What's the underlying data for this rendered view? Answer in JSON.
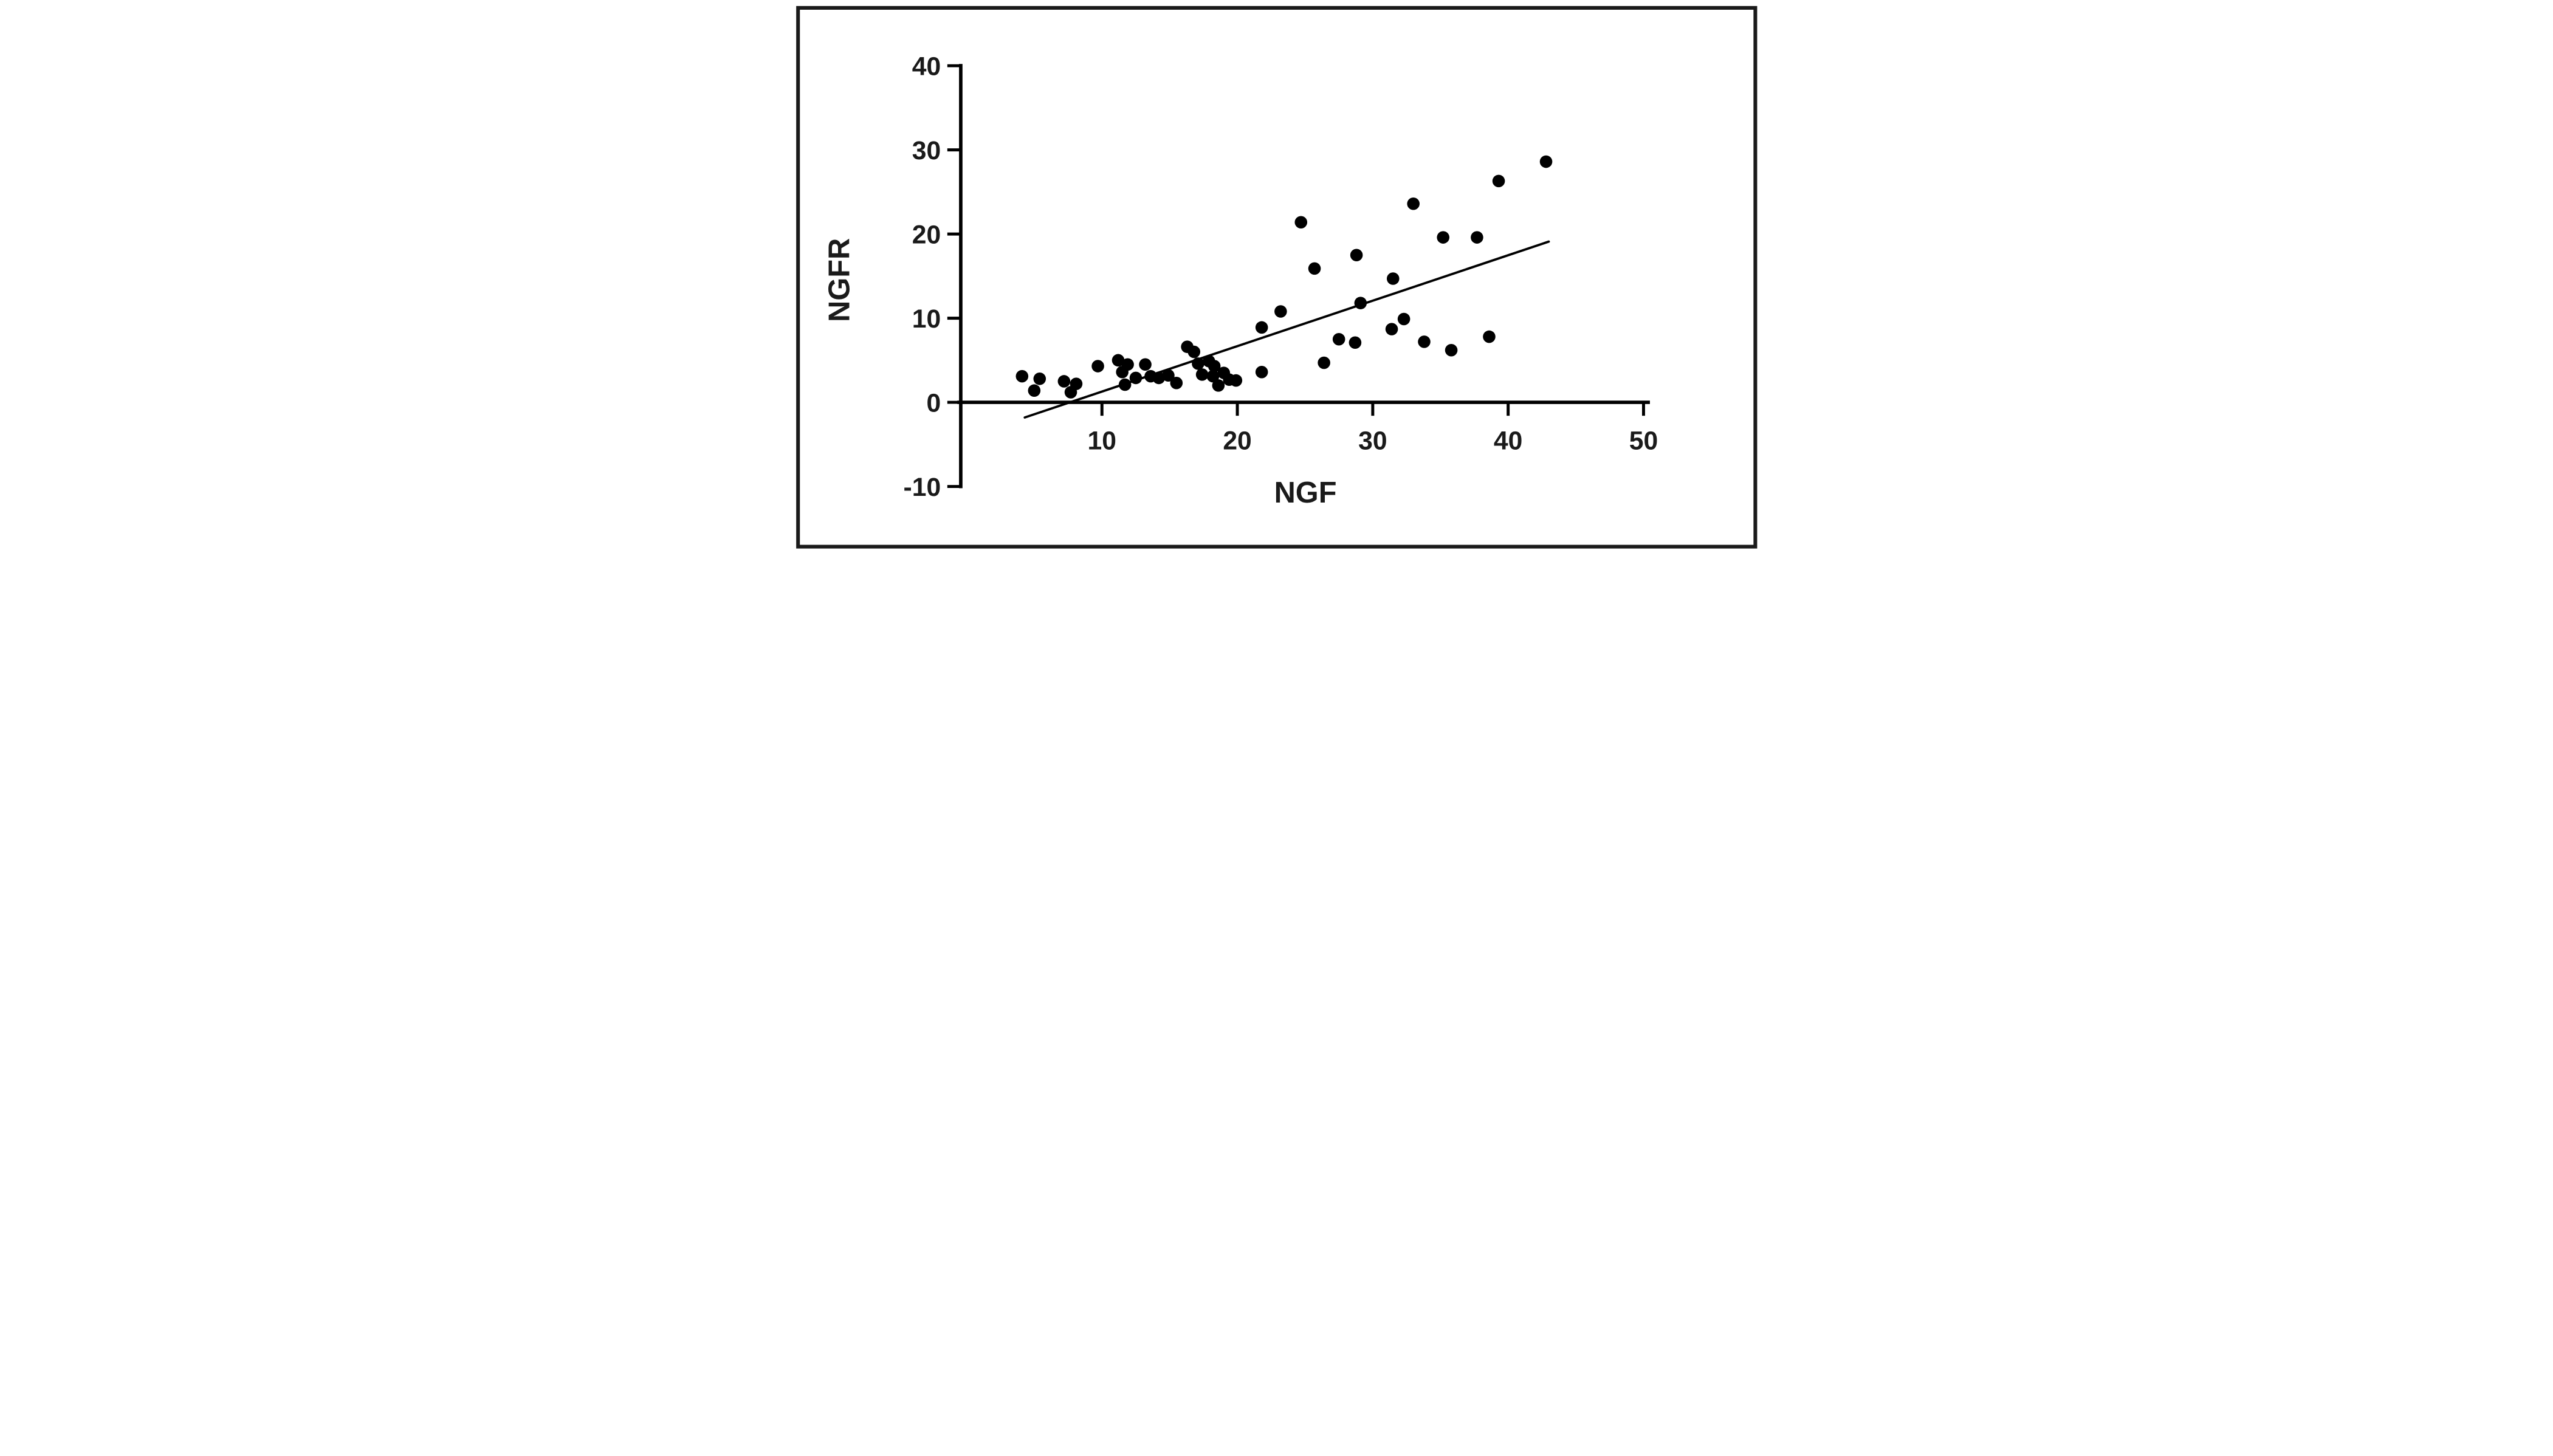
{
  "figure": {
    "background_color": "#ffffff",
    "border_color": "#1a1a1a",
    "ink_color": "#000000"
  },
  "chart_data": {
    "type": "scatter",
    "title": "",
    "xlabel": "NGF",
    "ylabel": "NGFR",
    "xlim": [
      0,
      50
    ],
    "ylim": [
      -10,
      40
    ],
    "x_ticks": [
      10,
      20,
      30,
      40,
      50
    ],
    "y_ticks": [
      -10,
      0,
      10,
      20,
      30,
      40
    ],
    "grid": false,
    "legend": "none",
    "marker": {
      "shape": "circle",
      "color": "#000000"
    },
    "points": [
      [
        4.1,
        3.1
      ],
      [
        5.4,
        2.8
      ],
      [
        5.0,
        1.4
      ],
      [
        7.2,
        2.5
      ],
      [
        8.1,
        2.2
      ],
      [
        7.7,
        1.2
      ],
      [
        9.7,
        4.3
      ],
      [
        11.2,
        5.0
      ],
      [
        11.9,
        4.5
      ],
      [
        11.5,
        3.6
      ],
      [
        11.7,
        2.1
      ],
      [
        12.5,
        2.9
      ],
      [
        13.2,
        4.5
      ],
      [
        13.6,
        3.1
      ],
      [
        14.2,
        2.9
      ],
      [
        14.9,
        3.2
      ],
      [
        15.5,
        2.3
      ],
      [
        16.3,
        6.6
      ],
      [
        16.8,
        6.0
      ],
      [
        17.1,
        4.6
      ],
      [
        17.9,
        4.9
      ],
      [
        18.3,
        4.3
      ],
      [
        17.4,
        3.3
      ],
      [
        18.2,
        3.1
      ],
      [
        19.0,
        3.5
      ],
      [
        19.4,
        2.7
      ],
      [
        18.6,
        2.0
      ],
      [
        19.9,
        2.6
      ],
      [
        21.8,
        3.6
      ],
      [
        21.8,
        8.9
      ],
      [
        23.2,
        10.8
      ],
      [
        24.7,
        21.4
      ],
      [
        25.7,
        15.9
      ],
      [
        26.4,
        4.7
      ],
      [
        27.5,
        7.5
      ],
      [
        28.7,
        7.1
      ],
      [
        28.8,
        17.5
      ],
      [
        29.1,
        11.8
      ],
      [
        31.5,
        14.7
      ],
      [
        31.4,
        8.7
      ],
      [
        32.3,
        9.9
      ],
      [
        33.0,
        23.6
      ],
      [
        33.8,
        7.2
      ],
      [
        35.8,
        6.2
      ],
      [
        38.6,
        7.8
      ],
      [
        35.2,
        19.6
      ],
      [
        37.7,
        19.6
      ],
      [
        39.3,
        26.3
      ],
      [
        42.8,
        28.6
      ]
    ],
    "regression_line": {
      "x1": 4.3,
      "y1": -1.8,
      "x2": 43.0,
      "y2": 19.1
    }
  }
}
